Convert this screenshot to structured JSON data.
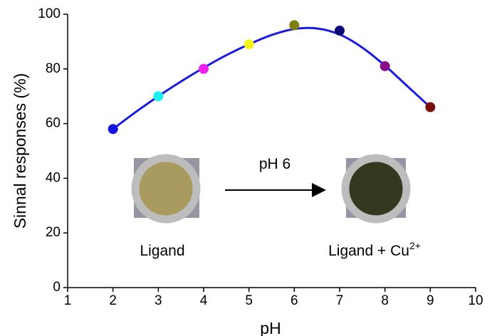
{
  "chart_data": {
    "type": "scatter",
    "x_label": "pH",
    "y_label": "Sinnal responses (%)",
    "xlim": [
      1,
      10
    ],
    "xticks": [
      1,
      2,
      3,
      4,
      5,
      6,
      7,
      8,
      9,
      10
    ],
    "ylim": [
      0,
      100
    ],
    "yticks": [
      0,
      20,
      40,
      60,
      80,
      100
    ],
    "grid": false,
    "series": [
      {
        "x": [
          2,
          3,
          4,
          5,
          6,
          7,
          8,
          9
        ],
        "values": [
          58,
          70,
          80,
          89,
          96,
          94,
          81,
          66
        ],
        "colors": [
          "#1515e0",
          "#19f0f0",
          "#f21ff2",
          "#f5f51a",
          "#808010",
          "#0a0a78",
          "#8a108a",
          "#7a0c0c"
        ]
      },
      {
        "kind": "curve",
        "color": "#1a1ae6",
        "x": [
          2,
          2.5,
          3,
          3.5,
          4,
          4.5,
          5,
          5.5,
          6,
          6.5,
          7,
          7.5,
          8,
          8.5,
          9
        ],
        "values": [
          58,
          64.2,
          70,
          75.4,
          80.4,
          85,
          89,
          92.4,
          94.6,
          94.8,
          92.6,
          87.8,
          81.2,
          73.6,
          66
        ]
      }
    ],
    "annotations": {
      "condition": "pH 6",
      "left": "Ligand",
      "right": {
        "text": "Ligand + Cu",
        "sup": "2+"
      }
    }
  }
}
